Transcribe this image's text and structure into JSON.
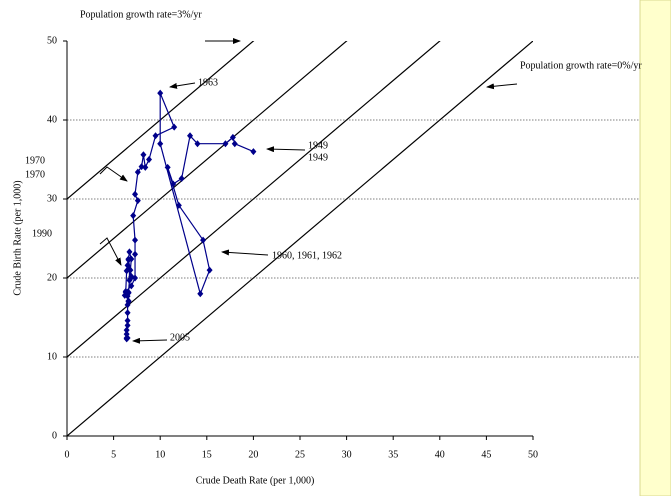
{
  "chart_data": {
    "type": "line",
    "x_label": "Crude Death Rate (per 1,000)",
    "y_label": "Crude Birth Rate (per 1,000)",
    "annotations": [
      "Population growth rate=3%/yr",
      "Population growth rate=0%/yr",
      "1963",
      "1949",
      "1949",
      "1970",
      "1970",
      "1990",
      "1960, 1961, 1962",
      "2005"
    ],
    "xlim": [
      0,
      50
    ],
    "xticks": [
      0,
      5,
      10,
      15,
      20,
      25,
      30,
      35,
      40,
      45,
      50
    ],
    "ylim": [
      0,
      50
    ],
    "yticks": [
      0,
      10,
      20,
      30,
      40,
      50
    ],
    "grid_values": [
      10,
      20,
      30,
      40
    ],
    "diagonal_offsets": [
      0,
      10,
      20,
      30
    ],
    "series": [
      {
        "color": "#00008b",
        "x": [
          20.0,
          18.0,
          17.8,
          17.0,
          14.0,
          13.2,
          12.3,
          11.4,
          10.8,
          12.0,
          14.6,
          15.3,
          14.3,
          10.0,
          10.0,
          11.5,
          9.5,
          8.8,
          8.4,
          8.2,
          8.0,
          7.6,
          7.3,
          7.6,
          7.1,
          7.3,
          7.3,
          7.3,
          6.9,
          6.3,
          6.2,
          6.3,
          6.4,
          6.6,
          6.9,
          6.8,
          6.8,
          6.9,
          6.7,
          6.6,
          6.5,
          6.7,
          6.7,
          6.6,
          6.6,
          6.5,
          6.6,
          6.6,
          6.5,
          6.5,
          6.5,
          6.5,
          6.4,
          6.4,
          6.4,
          6.4,
          6.5
        ],
        "values": [
          36.0,
          37.0,
          37.8,
          37.0,
          37.0,
          38.0,
          32.6,
          31.9,
          34.0,
          29.2,
          24.8,
          21.0,
          18.0,
          37.0,
          43.4,
          39.1,
          38.0,
          35.0,
          34.0,
          35.6,
          34.1,
          33.4,
          30.6,
          29.8,
          27.9,
          24.8,
          23.0,
          20.0,
          19.0,
          18.3,
          17.8,
          18.2,
          20.9,
          22.3,
          20.2,
          19.9,
          21.0,
          22.4,
          23.3,
          22.4,
          21.6,
          21.1,
          19.7,
          18.2,
          18.1,
          17.7,
          17.1,
          17.0,
          16.6,
          15.6,
          14.6,
          14.0,
          13.4,
          12.9,
          12.4,
          12.3,
          12.4
        ]
      }
    ]
  }
}
